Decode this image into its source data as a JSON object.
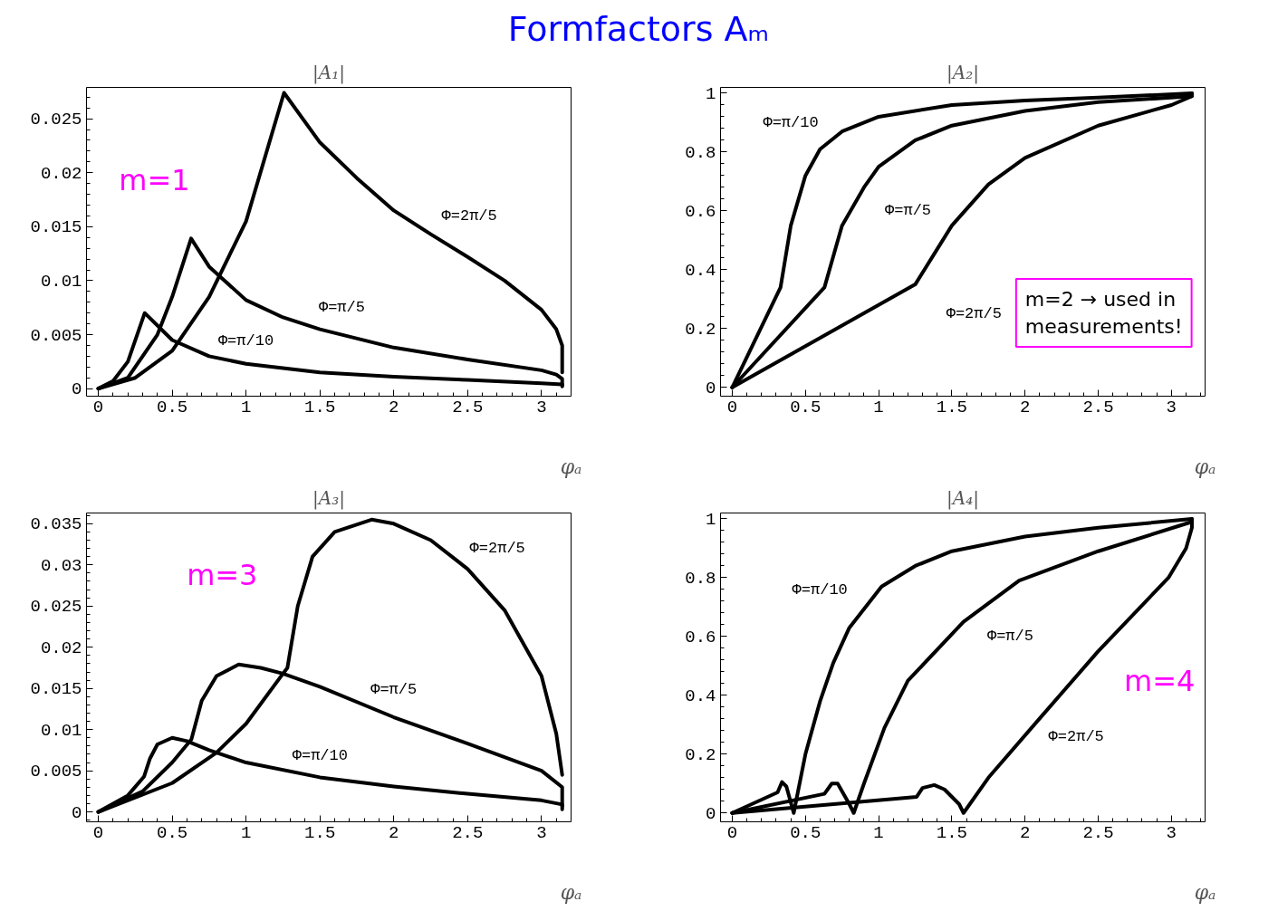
{
  "chart_data": [
    {
      "type": "other",
      "title": "Formfactors Aₘ"
    },
    {
      "type": "line",
      "title": "|A₁|",
      "xlabel": "φₐ",
      "xlim": [
        -0.08,
        3.2
      ],
      "xticks": [
        0,
        0.5,
        1,
        1.5,
        2,
        2.5,
        3
      ],
      "ylim": [
        -0.0007,
        0.0279
      ],
      "yticks": [
        0,
        0.005,
        0.01,
        0.015,
        0.02,
        0.025
      ],
      "series": [
        {
          "color": "#000000",
          "x": [
            0,
            0.1,
            0.2,
            0.314,
            0.5,
            0.75,
            1,
            1.5,
            2,
            2.5,
            3,
            3.14,
            3.14
          ],
          "values": [
            0,
            0.0007,
            0.0025,
            0.007,
            0.0045,
            0.003,
            0.0023,
            0.0015,
            0.0011,
            0.0008,
            0.0005,
            0.0004,
            0.0002
          ]
        },
        {
          "color": "#000000",
          "x": [
            0,
            0.2,
            0.4,
            0.5,
            0.628,
            0.75,
            1,
            1.25,
            1.5,
            2,
            2.5,
            3,
            3.1,
            3.14,
            3.14
          ],
          "values": [
            0,
            0.001,
            0.005,
            0.0085,
            0.0139,
            0.0113,
            0.0082,
            0.0066,
            0.0055,
            0.0038,
            0.0027,
            0.0017,
            0.0013,
            0.0009,
            0.0003
          ]
        },
        {
          "color": "#000000",
          "x": [
            0,
            0.25,
            0.5,
            0.75,
            1,
            1.257,
            1.5,
            1.75,
            2,
            2.25,
            2.5,
            2.75,
            3,
            3.1,
            3.14,
            3.14
          ],
          "values": [
            0,
            0.001,
            0.0035,
            0.0085,
            0.0155,
            0.0274,
            0.0228,
            0.0195,
            0.0165,
            0.0143,
            0.0122,
            0.01,
            0.0073,
            0.0055,
            0.004,
            0.0015
          ]
        }
      ],
      "annotations": [
        "m=1",
        "Φ=2π/5",
        "Φ=π/5",
        "Φ=π/10"
      ]
    },
    {
      "type": "line",
      "title": "|A₂|",
      "xlabel": "φₐ",
      "xlim": [
        -0.08,
        3.23
      ],
      "xticks": [
        0,
        0.5,
        1,
        1.5,
        2,
        2.5,
        3
      ],
      "ylim": [
        -0.03,
        1.02
      ],
      "yticks": [
        0,
        0.2,
        0.4,
        0.6,
        0.8,
        1
      ],
      "series": [
        {
          "color": "#000000",
          "x": [
            0,
            0.33,
            0.4,
            0.5,
            0.6,
            0.75,
            1,
            1.5,
            2,
            2.5,
            3.14
          ],
          "values": [
            0,
            0.34,
            0.55,
            0.72,
            0.81,
            0.87,
            0.92,
            0.96,
            0.975,
            0.985,
            1.0
          ]
        },
        {
          "color": "#000000",
          "x": [
            0,
            0.63,
            0.75,
            0.9,
            1,
            1.25,
            1.5,
            2,
            2.5,
            3.14
          ],
          "values": [
            0,
            0.34,
            0.55,
            0.68,
            0.75,
            0.84,
            0.89,
            0.94,
            0.97,
            0.99
          ]
        },
        {
          "color": "#000000",
          "x": [
            0,
            1.25,
            1.4,
            1.5,
            1.75,
            2,
            2.5,
            3,
            3.14,
            3.14
          ],
          "values": [
            0,
            0.35,
            0.47,
            0.55,
            0.69,
            0.78,
            0.89,
            0.96,
            0.99,
            1.0
          ]
        }
      ],
      "annotations": [
        "m=2 → used in measurements!",
        "Φ=π/10",
        "Φ=π/5",
        "Φ=2π/5"
      ]
    },
    {
      "type": "line",
      "title": "|A₃|",
      "xlabel": "φₐ",
      "xlim": [
        -0.08,
        3.2
      ],
      "xticks": [
        0,
        0.5,
        1,
        1.5,
        2,
        2.5,
        3
      ],
      "ylim": [
        -0.0012,
        0.0363
      ],
      "yticks": [
        0,
        0.005,
        0.01,
        0.015,
        0.02,
        0.025,
        0.03,
        0.035
      ],
      "series": [
        {
          "color": "#000000",
          "x": [
            0,
            0.2,
            0.31,
            0.35,
            0.4,
            0.5,
            0.6,
            0.75,
            1,
            1.5,
            2,
            2.5,
            3,
            3.14,
            3.14
          ],
          "values": [
            0,
            0.002,
            0.0043,
            0.0065,
            0.0082,
            0.009,
            0.0086,
            0.0075,
            0.006,
            0.0042,
            0.0031,
            0.0022,
            0.0014,
            0.0009,
            0.0003
          ]
        },
        {
          "color": "#000000",
          "x": [
            0,
            0.3,
            0.5,
            0.63,
            0.7,
            0.8,
            0.95,
            1.1,
            1.25,
            1.5,
            2,
            2.5,
            3,
            3.14,
            3.14
          ],
          "values": [
            0,
            0.0025,
            0.006,
            0.0088,
            0.0135,
            0.0165,
            0.0179,
            0.0175,
            0.0168,
            0.0152,
            0.0115,
            0.0083,
            0.005,
            0.003,
            0.0007
          ]
        },
        {
          "color": "#000000",
          "x": [
            0,
            0.5,
            0.8,
            1,
            1.25,
            1.28,
            1.35,
            1.45,
            1.6,
            1.85,
            2,
            2.25,
            2.5,
            2.75,
            3,
            3.1,
            3.14
          ],
          "values": [
            0,
            0.0035,
            0.0072,
            0.0107,
            0.0168,
            0.0175,
            0.025,
            0.031,
            0.034,
            0.0355,
            0.035,
            0.033,
            0.0295,
            0.0245,
            0.0165,
            0.0095,
            0.0045
          ]
        }
      ],
      "annotations": [
        "m=3",
        "Φ=2π/5",
        "Φ=π/5",
        "Φ=π/10"
      ]
    },
    {
      "type": "line",
      "title": "|A₄|",
      "xlabel": "φₐ",
      "xlim": [
        -0.08,
        3.23
      ],
      "xticks": [
        0,
        0.5,
        1,
        1.5,
        2,
        2.5,
        3
      ],
      "ylim": [
        -0.03,
        1.02
      ],
      "yticks": [
        0,
        0.2,
        0.4,
        0.6,
        0.8,
        1
      ],
      "series": [
        {
          "color": "#000000",
          "x": [
            0,
            0.31,
            0.34,
            0.37,
            0.42,
            0.5,
            0.6,
            0.69,
            0.8,
            1.02,
            1.25,
            1.5,
            2,
            2.5,
            3.14
          ],
          "values": [
            0,
            0.07,
            0.105,
            0.09,
            0.0,
            0.2,
            0.38,
            0.51,
            0.63,
            0.77,
            0.84,
            0.89,
            0.94,
            0.97,
            1.0
          ]
        },
        {
          "color": "#000000",
          "x": [
            0,
            0.63,
            0.68,
            0.72,
            0.8,
            0.83,
            0.9,
            1.04,
            1.2,
            1.58,
            1.96,
            2.5,
            3.14
          ],
          "values": [
            0,
            0.065,
            0.1,
            0.1,
            0.03,
            0.0,
            0.1,
            0.29,
            0.45,
            0.65,
            0.79,
            0.89,
            0.99
          ]
        },
        {
          "color": "#000000",
          "x": [
            0,
            1.26,
            1.3,
            1.38,
            1.45,
            1.55,
            1.58,
            1.75,
            2.08,
            2.5,
            2.98,
            3.1,
            3.14,
            3.14
          ],
          "values": [
            0,
            0.055,
            0.085,
            0.095,
            0.08,
            0.03,
            0.0,
            0.12,
            0.31,
            0.55,
            0.8,
            0.9,
            0.97,
            1.0
          ]
        }
      ],
      "annotations": [
        "m=4",
        "Φ=π/10",
        "Φ=π/5",
        "Φ=2π/5"
      ]
    }
  ]
}
